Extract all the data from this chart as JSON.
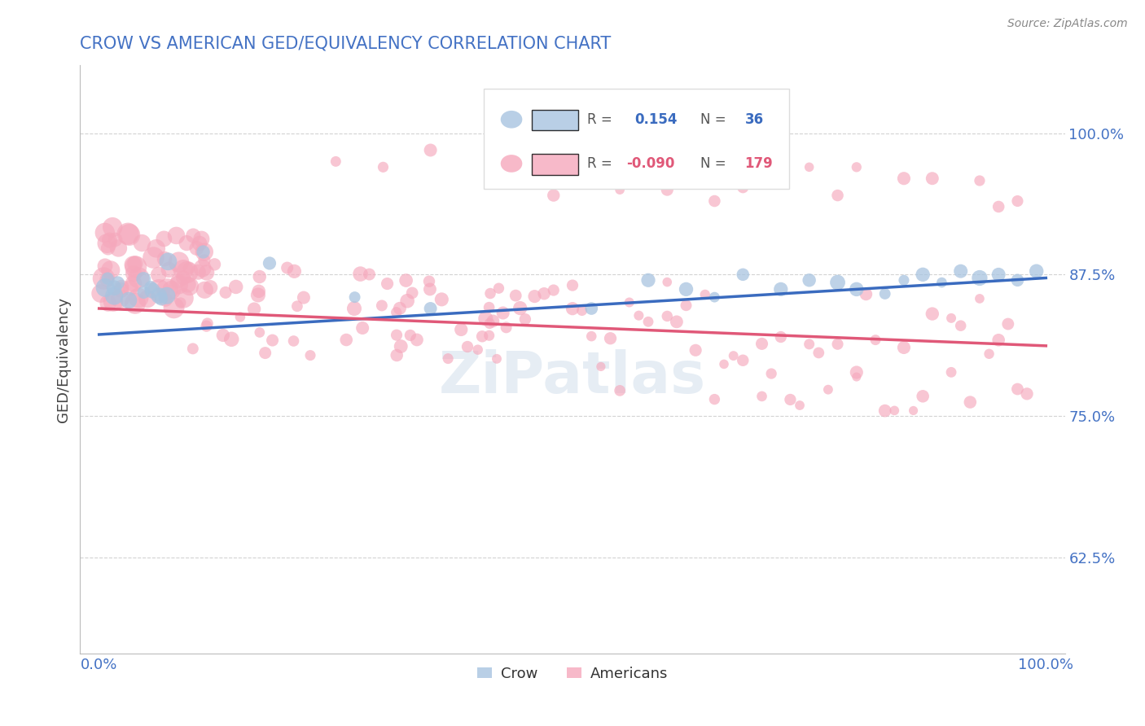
{
  "title": "CROW VS AMERICAN GED/EQUIVALENCY CORRELATION CHART",
  "source": "Source: ZipAtlas.com",
  "ylabel": "GED/Equivalency",
  "xlim": [
    -0.02,
    1.02
  ],
  "ylim": [
    0.54,
    1.06
  ],
  "yticks": [
    0.625,
    0.75,
    0.875,
    1.0
  ],
  "ytick_labels": [
    "62.5%",
    "75.0%",
    "87.5%",
    "100.0%"
  ],
  "xticks": [
    0.0,
    0.25,
    0.5,
    0.75,
    1.0
  ],
  "xtick_labels": [
    "0.0%",
    "",
    "",
    "",
    "100.0%"
  ],
  "crow_R": 0.154,
  "crow_N": 36,
  "american_R": -0.09,
  "american_N": 179,
  "crow_color": "#a8c4e0",
  "american_color": "#f5a8bc",
  "crow_line_color": "#3a6bbf",
  "american_line_color": "#e05878",
  "background_color": "#ffffff",
  "grid_color": "#c8c8c8",
  "title_color": "#4472c4",
  "axis_label_color": "#444444",
  "tick_label_color": "#4472c4",
  "watermark": "ZiPatlas",
  "crow_trend": [
    0.822,
    0.872
  ],
  "american_trend": [
    0.845,
    0.812
  ]
}
